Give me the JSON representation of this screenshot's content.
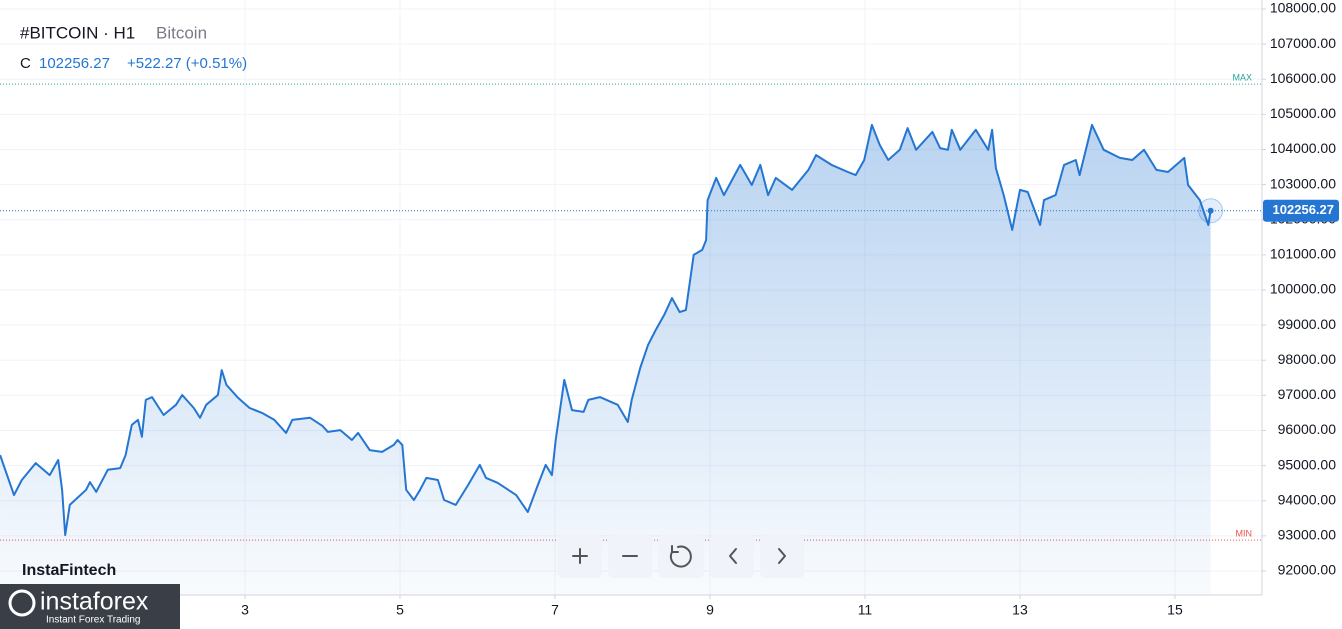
{
  "chart_data": {
    "type": "area-line",
    "title": "#BITCOIN · H1",
    "subtitle": "Bitcoin",
    "price_prefix": "C",
    "last_price": 102256.27,
    "change": "+522.27 (+0.51%)",
    "brand": "InstaFintech",
    "logo_name": "instaforex",
    "logo_tagline": "Instant Forex Trading",
    "x": [
      -0.16,
      0.02,
      0.12,
      0.3,
      0.48,
      0.59,
      0.64,
      0.68,
      0.74,
      0.95,
      1.0,
      1.08,
      1.23,
      1.39,
      1.46,
      1.54,
      1.62,
      1.67,
      1.72,
      1.8,
      1.95,
      2.11,
      2.19,
      2.34,
      2.42,
      2.5,
      2.65,
      2.7,
      2.76,
      2.91,
      3.06,
      3.22,
      3.38,
      3.53,
      3.61,
      3.84,
      4.0,
      4.07,
      4.23,
      4.38,
      4.46,
      4.61,
      4.77,
      4.92,
      4.97,
      5.03,
      5.08,
      5.18,
      5.26,
      5.34,
      5.49,
      5.57,
      5.72,
      5.88,
      6.03,
      6.11,
      6.26,
      6.5,
      6.65,
      6.78,
      6.88,
      6.96,
      7.01,
      7.12,
      7.22,
      7.37,
      7.43,
      7.58,
      7.81,
      7.94,
      7.99,
      8.1,
      8.2,
      8.3,
      8.41,
      8.51,
      8.61,
      8.69,
      8.79,
      8.9,
      8.95,
      8.97,
      9.08,
      9.18,
      9.39,
      9.54,
      9.65,
      9.75,
      9.85,
      10.06,
      10.27,
      10.37,
      10.57,
      10.78,
      10.88,
      10.99,
      11.09,
      11.19,
      11.3,
      11.45,
      11.55,
      11.66,
      11.87,
      11.97,
      12.07,
      12.12,
      12.23,
      12.43,
      12.59,
      12.64,
      12.69,
      12.79,
      12.9,
      13.0,
      13.1,
      13.26,
      13.31,
      13.46,
      13.57,
      13.72,
      13.77,
      13.93,
      14.08,
      14.29,
      14.45,
      14.6,
      14.76,
      14.91,
      15.12,
      15.17,
      15.32,
      15.43,
      15.46
    ],
    "series": [
      {
        "name": "Bitcoin",
        "color": "#2476d2",
        "values": [
          95300,
          94160,
          94590,
          95070,
          94730,
          95160,
          94310,
          93020,
          93880,
          94310,
          94530,
          94250,
          94880,
          94930,
          95300,
          96160,
          96300,
          95820,
          96870,
          96950,
          96440,
          96730,
          97010,
          96640,
          96360,
          96730,
          97010,
          97720,
          97300,
          96930,
          96640,
          96500,
          96300,
          95930,
          96300,
          96360,
          96130,
          95960,
          96010,
          95730,
          95930,
          95440,
          95390,
          95590,
          95730,
          95590,
          94310,
          94020,
          94310,
          94650,
          94590,
          94020,
          93880,
          94450,
          95020,
          94650,
          94510,
          94160,
          93680,
          94450,
          95020,
          94730,
          95730,
          97440,
          96580,
          96530,
          96870,
          96950,
          96730,
          96240,
          96870,
          97780,
          98430,
          98860,
          99290,
          99770,
          99370,
          99430,
          101000,
          101140,
          101420,
          102560,
          103190,
          102700,
          103560,
          102990,
          103560,
          102700,
          103190,
          102850,
          103420,
          103840,
          103560,
          103360,
          103270,
          103700,
          104700,
          104130,
          103700,
          103990,
          104610,
          103990,
          104500,
          104040,
          103990,
          104560,
          103990,
          104560,
          103990,
          104560,
          103470,
          102700,
          101710,
          102850,
          102790,
          101850,
          102560,
          102700,
          103560,
          103700,
          103270,
          104700,
          103990,
          103760,
          103700,
          103990,
          103420,
          103360,
          103760,
          102990,
          102560,
          101850,
          102256.27
        ]
      }
    ],
    "reference_lines": [
      {
        "label": "MAX",
        "value": 105860,
        "color": "#26a69a"
      },
      {
        "label": "MIN",
        "value": 92880,
        "color": "#ef5350"
      }
    ],
    "xlim": [
      -0.161,
      16.123
    ],
    "xticks": [
      3,
      5,
      7,
      9,
      11,
      13,
      15
    ],
    "ylim": [
      91316,
      108256
    ],
    "yticks": [
      {
        "value": 92000,
        "label": "92000.00"
      },
      {
        "value": 93000,
        "label": "93000.00"
      },
      {
        "value": 94000,
        "label": "94000.00"
      },
      {
        "value": 95000,
        "label": "95000.00"
      },
      {
        "value": 96000,
        "label": "96000.00"
      },
      {
        "value": 97000,
        "label": "97000.00"
      },
      {
        "value": 98000,
        "label": "98000.00"
      },
      {
        "value": 99000,
        "label": "99000.00"
      },
      {
        "value": 100000,
        "label": "100000.00"
      },
      {
        "value": 101000,
        "label": "101000.00"
      },
      {
        "value": 102000,
        "label": "102000.00"
      },
      {
        "value": 103000,
        "label": "103000.00"
      },
      {
        "value": 104000,
        "label": "104000.00"
      },
      {
        "value": 105000,
        "label": "105000.00"
      },
      {
        "value": 106000,
        "label": "106000.00"
      },
      {
        "value": 107000,
        "label": "107000.00"
      },
      {
        "value": 108000,
        "label": "108000.00"
      }
    ],
    "grid": true
  }
}
